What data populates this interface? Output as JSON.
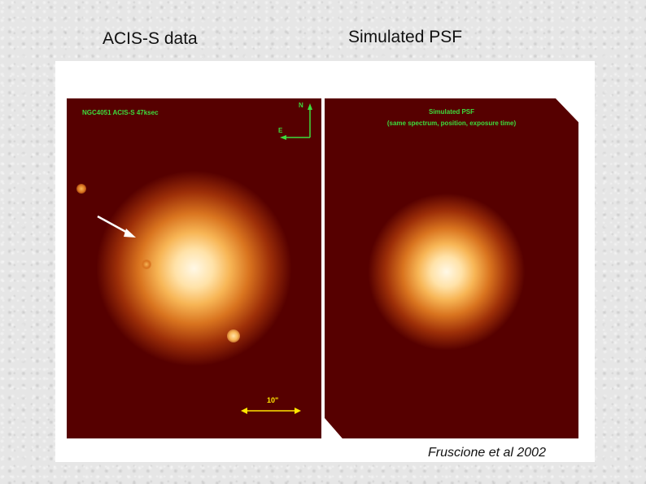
{
  "headings": {
    "left": "ACIS-S data",
    "right": "Simulated PSF"
  },
  "left_panel": {
    "label": "NGC4051 ACIS-S 47ksec",
    "compass_n": "N",
    "compass_e": "E",
    "scale_label": "10\"",
    "overlay_color": "#3ddc3d",
    "scale_color": "#ffe600"
  },
  "right_panel": {
    "title": "Simulated PSF",
    "subtitle": "(same spectrum, position, exposure time)"
  },
  "credit": "Fruscione et al 2002",
  "colors": {
    "background": "#560000",
    "core": "#fff8e6",
    "halo": "#f7b555"
  }
}
